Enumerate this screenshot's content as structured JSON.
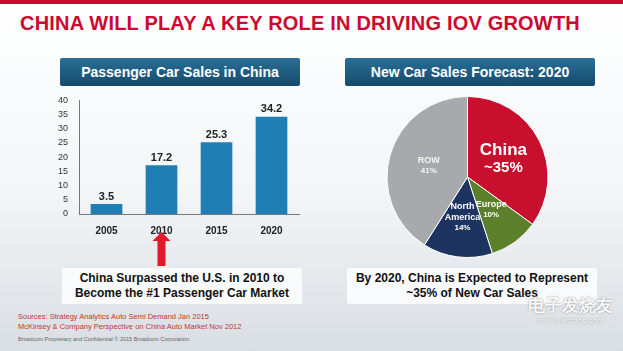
{
  "slide": {
    "title": "CHINA WILL PLAY A KEY ROLE IN DRIVING IOV GROWTH",
    "sources": [
      "Sources: Strategy Analytics Auto Semi Demand Jan 2015",
      "McKinsey & Company Perspective on China Auto Market Nov 2012"
    ],
    "footer": "Broadcom Proprietary and Confidential  © 2015 Broadcom Corporation",
    "watermark": [
      "电子发烧友",
      "www.elecfans.com"
    ]
  },
  "chart_data": [
    {
      "type": "bar",
      "title": "Passenger Car Sales in China",
      "categories": [
        "2005",
        "2010",
        "2015",
        "2020"
      ],
      "values": [
        3.5,
        17.2,
        25.3,
        34.2
      ],
      "color": "#1f7fb4",
      "ylim": [
        0,
        40
      ],
      "yticks": [
        0,
        5,
        10,
        15,
        20,
        25,
        30,
        35,
        40
      ],
      "grid": false,
      "data_labels": true,
      "annotation": "China Surpassed the U.S. in 2010 to Become the #1 Passenger Car Market"
    },
    {
      "type": "pie",
      "title": "New Car Sales Forecast: 2020",
      "categories": [
        "China",
        "Europe",
        "North America",
        "ROW"
      ],
      "values": [
        35,
        10,
        14,
        41
      ],
      "value_labels": [
        "~35%",
        "10%",
        "14%",
        "41%"
      ],
      "colors": [
        "#c8102e",
        "#5b7f2b",
        "#1d3461",
        "#a7a9ac"
      ],
      "data_labels": true,
      "annotation": "By 2020, China is Expected to Represent ~35% of New Car Sales"
    }
  ]
}
